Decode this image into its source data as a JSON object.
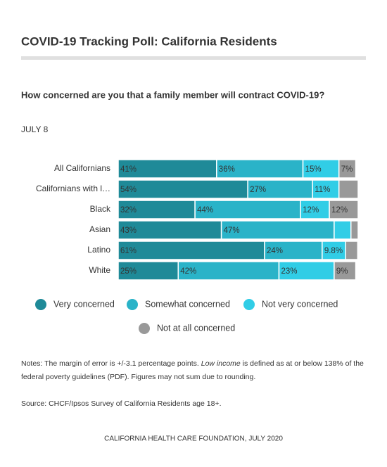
{
  "chart_data": {
    "type": "stacked-bar-horizontal",
    "title": "COVID-19 Tracking Poll: California Residents",
    "subtitle": "How concerned are you that a family member will contract COVID-19?",
    "date_label": "JULY 8",
    "categories": [
      "All Californians",
      "Californians with l…",
      "Black",
      "Asian",
      "Latino",
      "White"
    ],
    "xlim": [
      0,
      100
    ],
    "series": [
      {
        "name": "Very concerned",
        "color": "#1f8a98",
        "values": [
          41,
          54,
          32,
          43,
          61,
          25
        ],
        "value_labels": [
          "41%",
          "54%",
          "32%",
          "43%",
          "61%",
          "25%"
        ]
      },
      {
        "name": "Somewhat concerned",
        "color": "#2ab3c8",
        "values": [
          36,
          27,
          44,
          47,
          24,
          42
        ],
        "value_labels": [
          "36%",
          "27%",
          "44%",
          "47%",
          "24%",
          "42%"
        ]
      },
      {
        "name": "Not very concerned",
        "color": "#31cde6",
        "values": [
          15,
          11,
          12,
          7,
          9.8,
          23
        ],
        "value_labels": [
          "15%",
          "11%",
          "12%",
          null,
          "9.8%",
          "23%"
        ]
      },
      {
        "name": "Not at all concerned",
        "color": "#999999",
        "values": [
          7,
          8,
          12,
          3,
          5,
          9
        ],
        "value_labels": [
          "7%",
          null,
          "12%",
          null,
          null,
          "9%"
        ]
      }
    ]
  },
  "notes": [
    "Notes: The margin of error is +/-3.1 percentage points. ",
    "Low income",
    " is defined as at or below 138% of the federal poverty guidelines (PDF). Figures may not sum due to rounding."
  ],
  "source": "Source: CHCF/Ipsos Survey of California Residents age 18+.",
  "footer": "CALIFORNIA HEALTH CARE FOUNDATION, JULY 2020"
}
